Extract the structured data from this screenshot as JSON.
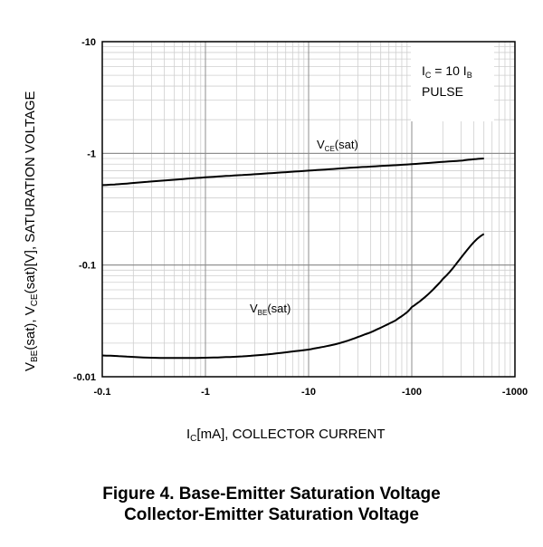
{
  "chart_data": {
    "type": "line",
    "x_scale": "log",
    "y_scale": "log",
    "xlim": [
      -0.1,
      -1000
    ],
    "ylim": [
      -0.01,
      -10
    ],
    "grid": true,
    "x_ticks": [
      "-0.1",
      "-1",
      "-10",
      "-100",
      "-1000"
    ],
    "y_ticks": [
      "-10",
      "-1",
      "-0.1",
      "-0.01"
    ],
    "xlabel": {
      "main": "I",
      "sub": "C",
      "rest": "[mA], COLLECTOR CURRENT"
    },
    "ylabel": {
      "p1": "V",
      "s1": "BE",
      "p2": "(sat),  V",
      "s2": "CE",
      "p3": "(sat)[V], SATURATION VOLTAGE"
    },
    "annotation": {
      "line1_main": "I",
      "line1_sub": "C",
      "line1_mid": " = 10 I",
      "line1_sub2": "B",
      "line2": "PULSE"
    },
    "series": [
      {
        "name": "VCE(sat)",
        "label_main": "V",
        "label_sub": "CE",
        "label_rest": "(sat)",
        "x": [
          -0.1,
          -0.3,
          -1,
          -3,
          -10,
          -30,
          -100,
          -300,
          -500
        ],
        "y": [
          -0.52,
          -0.56,
          -0.61,
          -0.65,
          -0.7,
          -0.75,
          -0.8,
          -0.86,
          -0.9
        ]
      },
      {
        "name": "VBE(sat)",
        "label_main": "V",
        "label_sub": "BE",
        "label_rest": "(sat)",
        "x": [
          -0.1,
          -0.3,
          -1,
          -3,
          -10,
          -20,
          -40,
          -70,
          -100,
          -200,
          -500
        ],
        "y": [
          -0.0155,
          -0.0148,
          -0.0148,
          -0.0155,
          -0.0175,
          -0.02,
          -0.025,
          -0.032,
          -0.042,
          -0.075,
          -0.19
        ]
      }
    ]
  },
  "caption": {
    "line1": "Figure 4. Base-Emitter Saturation Voltage",
    "line2": "Collector-Emitter Saturation Voltage"
  }
}
